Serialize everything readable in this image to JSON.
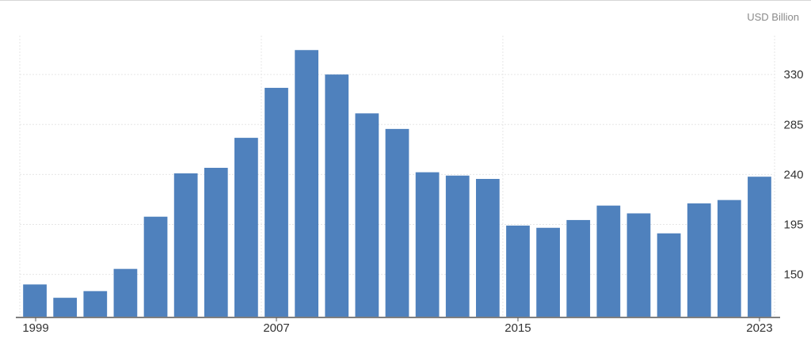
{
  "chart_data": {
    "type": "bar",
    "unit_label": "USD Billion",
    "x": [
      1999,
      2000,
      2001,
      2002,
      2003,
      2004,
      2005,
      2006,
      2007,
      2008,
      2009,
      2010,
      2011,
      2012,
      2013,
      2014,
      2015,
      2016,
      2017,
      2018,
      2019,
      2020,
      2021,
      2022,
      2023
    ],
    "values": [
      141,
      129,
      135,
      155,
      202,
      241,
      246,
      273,
      318,
      352,
      330,
      295,
      281,
      242,
      239,
      236,
      194,
      192,
      199,
      212,
      205,
      187,
      214,
      217,
      238
    ],
    "x_tick_labels": [
      "1999",
      "2007",
      "2015",
      "2023"
    ],
    "y_ticks": [
      150,
      195,
      240,
      285,
      330
    ],
    "ylim": [
      112,
      365
    ],
    "bar_color": "#4f81bd",
    "grid": true,
    "y_axis_position": "right"
  }
}
